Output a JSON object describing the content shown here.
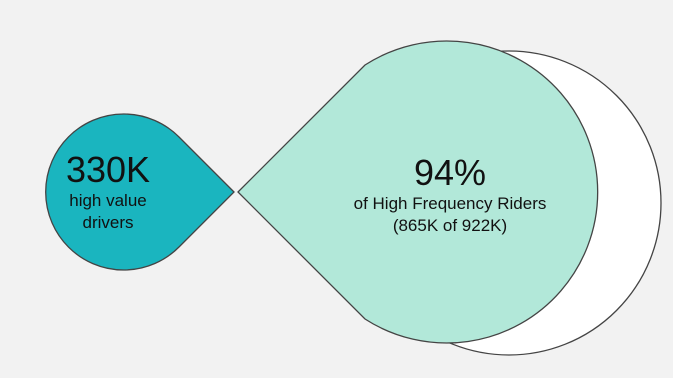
{
  "colors": {
    "background": "#f2f2f2",
    "left_fill": "#1ab5bf",
    "right_fill": "#b2e8d9",
    "crescent_fill": "#ffffff",
    "outline": "#444444"
  },
  "left_shape": {
    "value": "330K",
    "line1": "high value",
    "line2": "drivers"
  },
  "right_shape": {
    "value": "94%",
    "line1": "of High Frequency Riders",
    "line2": "(865K of 922K)"
  }
}
